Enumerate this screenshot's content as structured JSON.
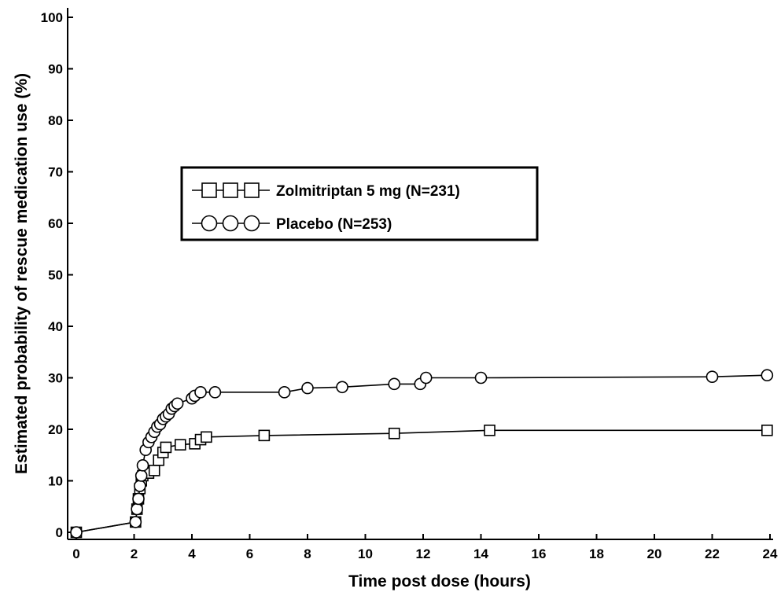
{
  "chart_data": {
    "type": "line",
    "title": "",
    "xlabel": "Time post dose (hours)",
    "ylabel": "Estimated probability of rescue medication use (%)",
    "xlim": [
      0,
      24
    ],
    "ylim": [
      0,
      100
    ],
    "xticks": [
      0,
      2,
      4,
      6,
      8,
      10,
      12,
      14,
      16,
      18,
      20,
      22,
      24
    ],
    "yticks": [
      0,
      10,
      20,
      30,
      40,
      50,
      60,
      70,
      80,
      90,
      100
    ],
    "grid": false,
    "legend_position": "upper-left-center",
    "series": [
      {
        "name": "Zolmitriptan 5 mg (N=231)",
        "marker": "square",
        "x": [
          0,
          2.05,
          2.1,
          2.15,
          2.2,
          2.25,
          2.3,
          2.5,
          2.7,
          2.85,
          3.0,
          3.1,
          3.6,
          4.1,
          4.3,
          4.5,
          6.5,
          11.0,
          14.3,
          23.9
        ],
        "y": [
          0,
          2.0,
          4.5,
          6.5,
          8.5,
          10.0,
          11.0,
          11.5,
          12.0,
          14.0,
          15.5,
          16.5,
          17.0,
          17.2,
          18.0,
          18.5,
          18.8,
          19.2,
          19.8,
          19.8
        ]
      },
      {
        "name": "Placebo (N=253)",
        "marker": "circle",
        "x": [
          0,
          2.05,
          2.1,
          2.15,
          2.2,
          2.25,
          2.3,
          2.4,
          2.5,
          2.6,
          2.7,
          2.8,
          2.9,
          3.0,
          3.1,
          3.2,
          3.3,
          3.4,
          3.5,
          4.0,
          4.1,
          4.3,
          4.8,
          7.2,
          8.0,
          9.2,
          11.0,
          11.9,
          12.1,
          14.0,
          22.0,
          23.9
        ],
        "y": [
          0,
          2.0,
          4.5,
          6.5,
          9.0,
          11.0,
          13.0,
          16.0,
          17.5,
          18.5,
          19.5,
          20.5,
          21.0,
          22.0,
          22.5,
          23.0,
          24.0,
          24.5,
          25.0,
          26.0,
          26.5,
          27.2,
          27.2,
          27.2,
          28.0,
          28.2,
          28.8,
          28.8,
          30.0,
          30.0,
          30.2,
          30.5
        ]
      }
    ]
  }
}
